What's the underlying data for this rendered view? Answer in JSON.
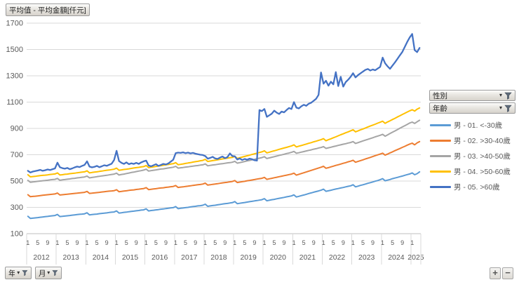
{
  "title_button_label": "平均值 - 平均金額[仟元]",
  "filter_buttons": {
    "gender": "性別",
    "age": "年齡",
    "year": "年",
    "month": "月"
  },
  "drill_buttons": {
    "expand": "+",
    "collapse": "−"
  },
  "chart_data": {
    "type": "line",
    "title": "平均值 - 平均金額[仟元]",
    "ylabel": "平均金額[仟元]",
    "ylim": [
      100,
      1700
    ],
    "y_ticks": [
      100,
      300,
      500,
      700,
      900,
      1100,
      1300,
      1500,
      1700
    ],
    "grid": "horizontal",
    "legend_position": "right",
    "x_start": "2012-01",
    "x_end": "2025-04",
    "x_years": [
      "2012",
      "2013",
      "2014",
      "2015",
      "2016",
      "2017",
      "2018",
      "2019",
      "2020",
      "2021",
      "2022",
      "2023",
      "2024",
      "2025"
    ],
    "month_ticks": [
      {
        "m": 0,
        "label": "1"
      },
      {
        "m": 4,
        "label": "5"
      },
      {
        "m": 8,
        "label": "9"
      }
    ],
    "series": [
      {
        "name": "男 - 01. <-30歲",
        "color": "#5B9BD5",
        "values": [
          232,
          216,
          218,
          220,
          222,
          225,
          227,
          229,
          231,
          234,
          236,
          238,
          246,
          230,
          232,
          234,
          236,
          238,
          241,
          243,
          245,
          247,
          249,
          251,
          259,
          243,
          245,
          247,
          249,
          252,
          254,
          256,
          258,
          261,
          263,
          265,
          273,
          257,
          259,
          262,
          264,
          267,
          269,
          271,
          274,
          276,
          279,
          281,
          289,
          273,
          276,
          278,
          281,
          283,
          286,
          288,
          291,
          293,
          296,
          298,
          306,
          290,
          293,
          295,
          298,
          300,
          303,
          306,
          308,
          311,
          313,
          316,
          324,
          308,
          311,
          314,
          316,
          319,
          322,
          325,
          328,
          330,
          333,
          336,
          344,
          328,
          331,
          334,
          337,
          340,
          343,
          346,
          349,
          352,
          355,
          358,
          366,
          350,
          354,
          358,
          361,
          365,
          369,
          372,
          376,
          380,
          383,
          387,
          395,
          379,
          384,
          389,
          394,
          399,
          405,
          410,
          415,
          420,
          425,
          430,
          438,
          422,
          426,
          430,
          435,
          439,
          443,
          447,
          451,
          456,
          460,
          464,
          472,
          456,
          461,
          467,
          472,
          477,
          483,
          488,
          493,
          499,
          504,
          510,
          518,
          502,
          507,
          512,
          518,
          523,
          528,
          533,
          538,
          544,
          549,
          554,
          562,
          548,
          556,
          570
        ]
      },
      {
        "name": "男 - 02. >30-40歲",
        "color": "#ED7D31",
        "values": [
          396,
          381,
          383,
          385,
          387,
          389,
          392,
          394,
          396,
          398,
          400,
          402,
          409,
          394,
          396,
          398,
          400,
          402,
          404,
          406,
          408,
          410,
          412,
          414,
          421,
          406,
          408,
          410,
          412,
          414,
          417,
          419,
          421,
          423,
          425,
          427,
          434,
          419,
          421,
          424,
          426,
          429,
          431,
          433,
          436,
          438,
          441,
          443,
          450,
          435,
          437,
          440,
          442,
          445,
          447,
          449,
          452,
          454,
          457,
          459,
          466,
          451,
          454,
          456,
          459,
          461,
          464,
          467,
          469,
          472,
          474,
          477,
          484,
          469,
          472,
          475,
          477,
          480,
          483,
          486,
          489,
          491,
          494,
          497,
          504,
          489,
          492,
          495,
          498,
          502,
          505,
          508,
          511,
          515,
          518,
          521,
          528,
          513,
          517,
          521,
          525,
          529,
          533,
          537,
          541,
          545,
          549,
          553,
          560,
          545,
          551,
          557,
          563,
          569,
          575,
          581,
          587,
          593,
          599,
          605,
          612,
          597,
          602,
          608,
          613,
          619,
          624,
          629,
          635,
          640,
          646,
          651,
          658,
          643,
          649,
          655,
          661,
          668,
          674,
          680,
          686,
          693,
          699,
          705,
          712,
          697,
          705,
          714,
          722,
          731,
          739,
          747,
          756,
          764,
          773,
          781,
          788,
          775,
          790,
          800
        ]
      },
      {
        "name": "男 - 03. >40-50歲",
        "color": "#A5A5A5",
        "values": [
          505,
          491,
          493,
          495,
          498,
          500,
          502,
          504,
          506,
          509,
          511,
          513,
          520,
          506,
          509,
          511,
          514,
          516,
          519,
          521,
          524,
          526,
          529,
          531,
          538,
          524,
          527,
          530,
          533,
          536,
          539,
          541,
          544,
          547,
          550,
          553,
          560,
          546,
          550,
          553,
          557,
          561,
          565,
          568,
          572,
          576,
          579,
          583,
          590,
          576,
          579,
          582,
          585,
          588,
          591,
          593,
          596,
          599,
          602,
          605,
          612,
          598,
          601,
          603,
          606,
          608,
          611,
          613,
          616,
          618,
          621,
          623,
          630,
          616,
          619,
          622,
          624,
          627,
          630,
          632,
          635,
          638,
          640,
          643,
          650,
          636,
          640,
          644,
          649,
          653,
          657,
          661,
          665,
          670,
          674,
          678,
          685,
          671,
          676,
          681,
          685,
          690,
          695,
          699,
          704,
          709,
          713,
          718,
          725,
          711,
          715,
          720,
          724,
          729,
          733,
          737,
          742,
          746,
          751,
          755,
          762,
          748,
          753,
          757,
          762,
          766,
          771,
          775,
          780,
          784,
          789,
          793,
          800,
          786,
          792,
          798,
          805,
          811,
          817,
          823,
          829,
          836,
          842,
          848,
          855,
          841,
          851,
          861,
          871,
          881,
          891,
          901,
          911,
          921,
          931,
          941,
          948,
          938,
          950,
          962
        ]
      },
      {
        "name": "男 - 04. >50-60歲",
        "color": "#FFC000",
        "values": [
          548,
          532,
          534,
          536,
          539,
          541,
          543,
          545,
          547,
          550,
          552,
          554,
          562,
          546,
          548,
          551,
          553,
          556,
          558,
          560,
          563,
          565,
          568,
          570,
          578,
          562,
          565,
          568,
          570,
          573,
          576,
          579,
          582,
          584,
          587,
          590,
          598,
          582,
          585,
          588,
          590,
          593,
          596,
          599,
          602,
          604,
          607,
          610,
          618,
          602,
          605,
          608,
          611,
          614,
          617,
          620,
          623,
          626,
          629,
          632,
          640,
          624,
          627,
          630,
          634,
          637,
          640,
          644,
          647,
          650,
          654,
          657,
          665,
          649,
          652,
          655,
          658,
          661,
          665,
          668,
          671,
          674,
          677,
          680,
          688,
          672,
          677,
          682,
          687,
          692,
          697,
          702,
          707,
          712,
          717,
          722,
          730,
          714,
          719,
          725,
          730,
          735,
          741,
          746,
          751,
          756,
          762,
          767,
          775,
          759,
          765,
          770,
          776,
          781,
          787,
          792,
          798,
          803,
          809,
          814,
          822,
          806,
          814,
          821,
          829,
          836,
          844,
          852,
          859,
          867,
          874,
          882,
          890,
          874,
          881,
          889,
          896,
          903,
          911,
          918,
          925,
          932,
          940,
          947,
          955,
          939,
          949,
          958,
          968,
          977,
          987,
          996,
          1006,
          1015,
          1025,
          1034,
          1042,
          1032,
          1046,
          1056
        ]
      },
      {
        "name": "男 - 05. >60歲",
        "color": "#4472C4",
        "values": [
          578,
          565,
          572,
          576,
          580,
          585,
          578,
          582,
          588,
          584,
          590,
          596,
          640,
          605,
          598,
          594,
          600,
          590,
          596,
          604,
          610,
          606,
          615,
          622,
          650,
          610,
          604,
          608,
          615,
          605,
          612,
          620,
          616,
          624,
          632,
          660,
          730,
          652,
          638,
          630,
          642,
          628,
          635,
          630,
          638,
          630,
          642,
          650,
          655,
          618,
          612,
          620,
          628,
          615,
          622,
          630,
          626,
          634,
          648,
          662,
          712,
          716,
          714,
          718,
          712,
          716,
          710,
          714,
          708,
          704,
          700,
          698,
          690,
          670,
          676,
          684,
          672,
          668,
          678,
          686,
          674,
          682,
          710,
          690,
          688,
          664,
          672,
          660,
          668,
          662,
          670,
          666,
          658,
          655,
          1040,
          1032,
          1048,
          988,
          1000,
          1012,
          1035,
          1020,
          1010,
          1028,
          1022,
          1040,
          1055,
          1048,
          1100,
          1058,
          1052,
          1068,
          1080,
          1072,
          1088,
          1095,
          1110,
          1125,
          1155,
          1325,
          1240,
          1262,
          1225,
          1255,
          1235,
          1328,
          1222,
          1292,
          1218,
          1252,
          1270,
          1292,
          1320,
          1288,
          1305,
          1318,
          1332,
          1345,
          1352,
          1340,
          1348,
          1342,
          1355,
          1368,
          1438,
          1395,
          1372,
          1353,
          1378,
          1402,
          1428,
          1455,
          1482,
          1520,
          1558,
          1592,
          1618,
          1495,
          1480,
          1512
        ]
      }
    ]
  }
}
